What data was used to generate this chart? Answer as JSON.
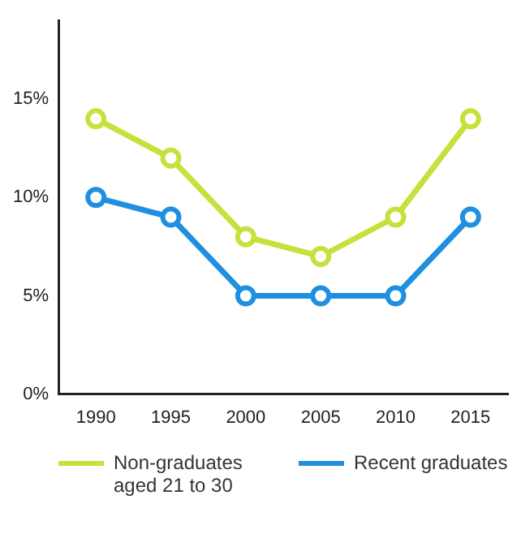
{
  "chart_data": {
    "type": "line",
    "categories": [
      "1990",
      "1995",
      "2000",
      "2005",
      "2010",
      "2015"
    ],
    "series": [
      {
        "name": "Non-graduates aged 21 to 30",
        "color": "#c8e03c",
        "values": [
          14,
          12,
          8,
          7,
          9,
          14
        ]
      },
      {
        "name": "Recent graduates",
        "color": "#1f8fe0",
        "values": [
          10,
          9,
          5,
          5,
          5,
          9
        ]
      }
    ],
    "ylim": [
      0,
      19
    ],
    "yticks": [
      {
        "value": 0,
        "label": "0%"
      },
      {
        "value": 5,
        "label": "5%"
      },
      {
        "value": 10,
        "label": "10%"
      },
      {
        "value": 15,
        "label": "15%"
      }
    ],
    "grid": false,
    "legend": "bottom",
    "marker": "circle",
    "line_style": "solid"
  }
}
